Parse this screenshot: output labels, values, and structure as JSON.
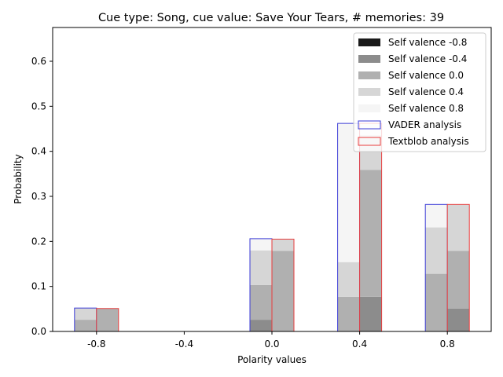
{
  "chart_data": {
    "type": "bar",
    "title": "Cue type: Song, cue value: Save Your Tears, # memories: 39",
    "xlabel": "Polarity values",
    "ylabel": "Probability",
    "categories": [
      "-0.8",
      "-0.4",
      "0.0",
      "0.4",
      "0.8"
    ],
    "category_values": [
      -0.8,
      -0.4,
      0.0,
      0.4,
      0.8
    ],
    "xlim": [
      -1.0,
      1.0
    ],
    "ylim": [
      0,
      0.675
    ],
    "yticks": [
      0.0,
      0.1,
      0.2,
      0.3,
      0.4,
      0.5,
      0.6
    ],
    "ytick_labels": [
      "0.0",
      "0.1",
      "0.2",
      "0.3",
      "0.4",
      "0.5",
      "0.6"
    ],
    "grid": false,
    "legend_position": "top-right",
    "self_valence_series": [
      {
        "name": "Self valence -0.8",
        "color": "#1a1a1a"
      },
      {
        "name": "Self valence -0.4",
        "color": "#8c8c8c"
      },
      {
        "name": "Self valence 0.0",
        "color": "#b0b0b0"
      },
      {
        "name": "Self valence 0.4",
        "color": "#d6d6d6"
      },
      {
        "name": "Self valence 0.8",
        "color": "#f5f5f5"
      }
    ],
    "analysis_series": [
      {
        "name": "VADER analysis",
        "edge_color": "#3a3ad6",
        "offset": "left",
        "stacks": [
          [
            0,
            0,
            0,
            0,
            0
          ],
          [
            0,
            0,
            0.026,
            0,
            0
          ],
          [
            0.026,
            0,
            0.077,
            0.077,
            0.128
          ],
          [
            0.026,
            0,
            0.077,
            0.077,
            0.103
          ],
          [
            0,
            0,
            0.026,
            0.308,
            0.051
          ]
        ]
      },
      {
        "name": "Textblob analysis",
        "edge_color": "#e83c3c",
        "offset": "right",
        "stacks": [
          [
            0,
            0,
            0,
            0,
            0
          ],
          [
            0,
            0,
            0,
            0.077,
            0.051
          ],
          [
            0.051,
            0,
            0.179,
            0.282,
            0.128
          ],
          [
            0,
            0,
            0.026,
            0.077,
            0.103
          ],
          [
            0,
            0,
            0,
            0.026,
            0
          ]
        ]
      }
    ]
  }
}
